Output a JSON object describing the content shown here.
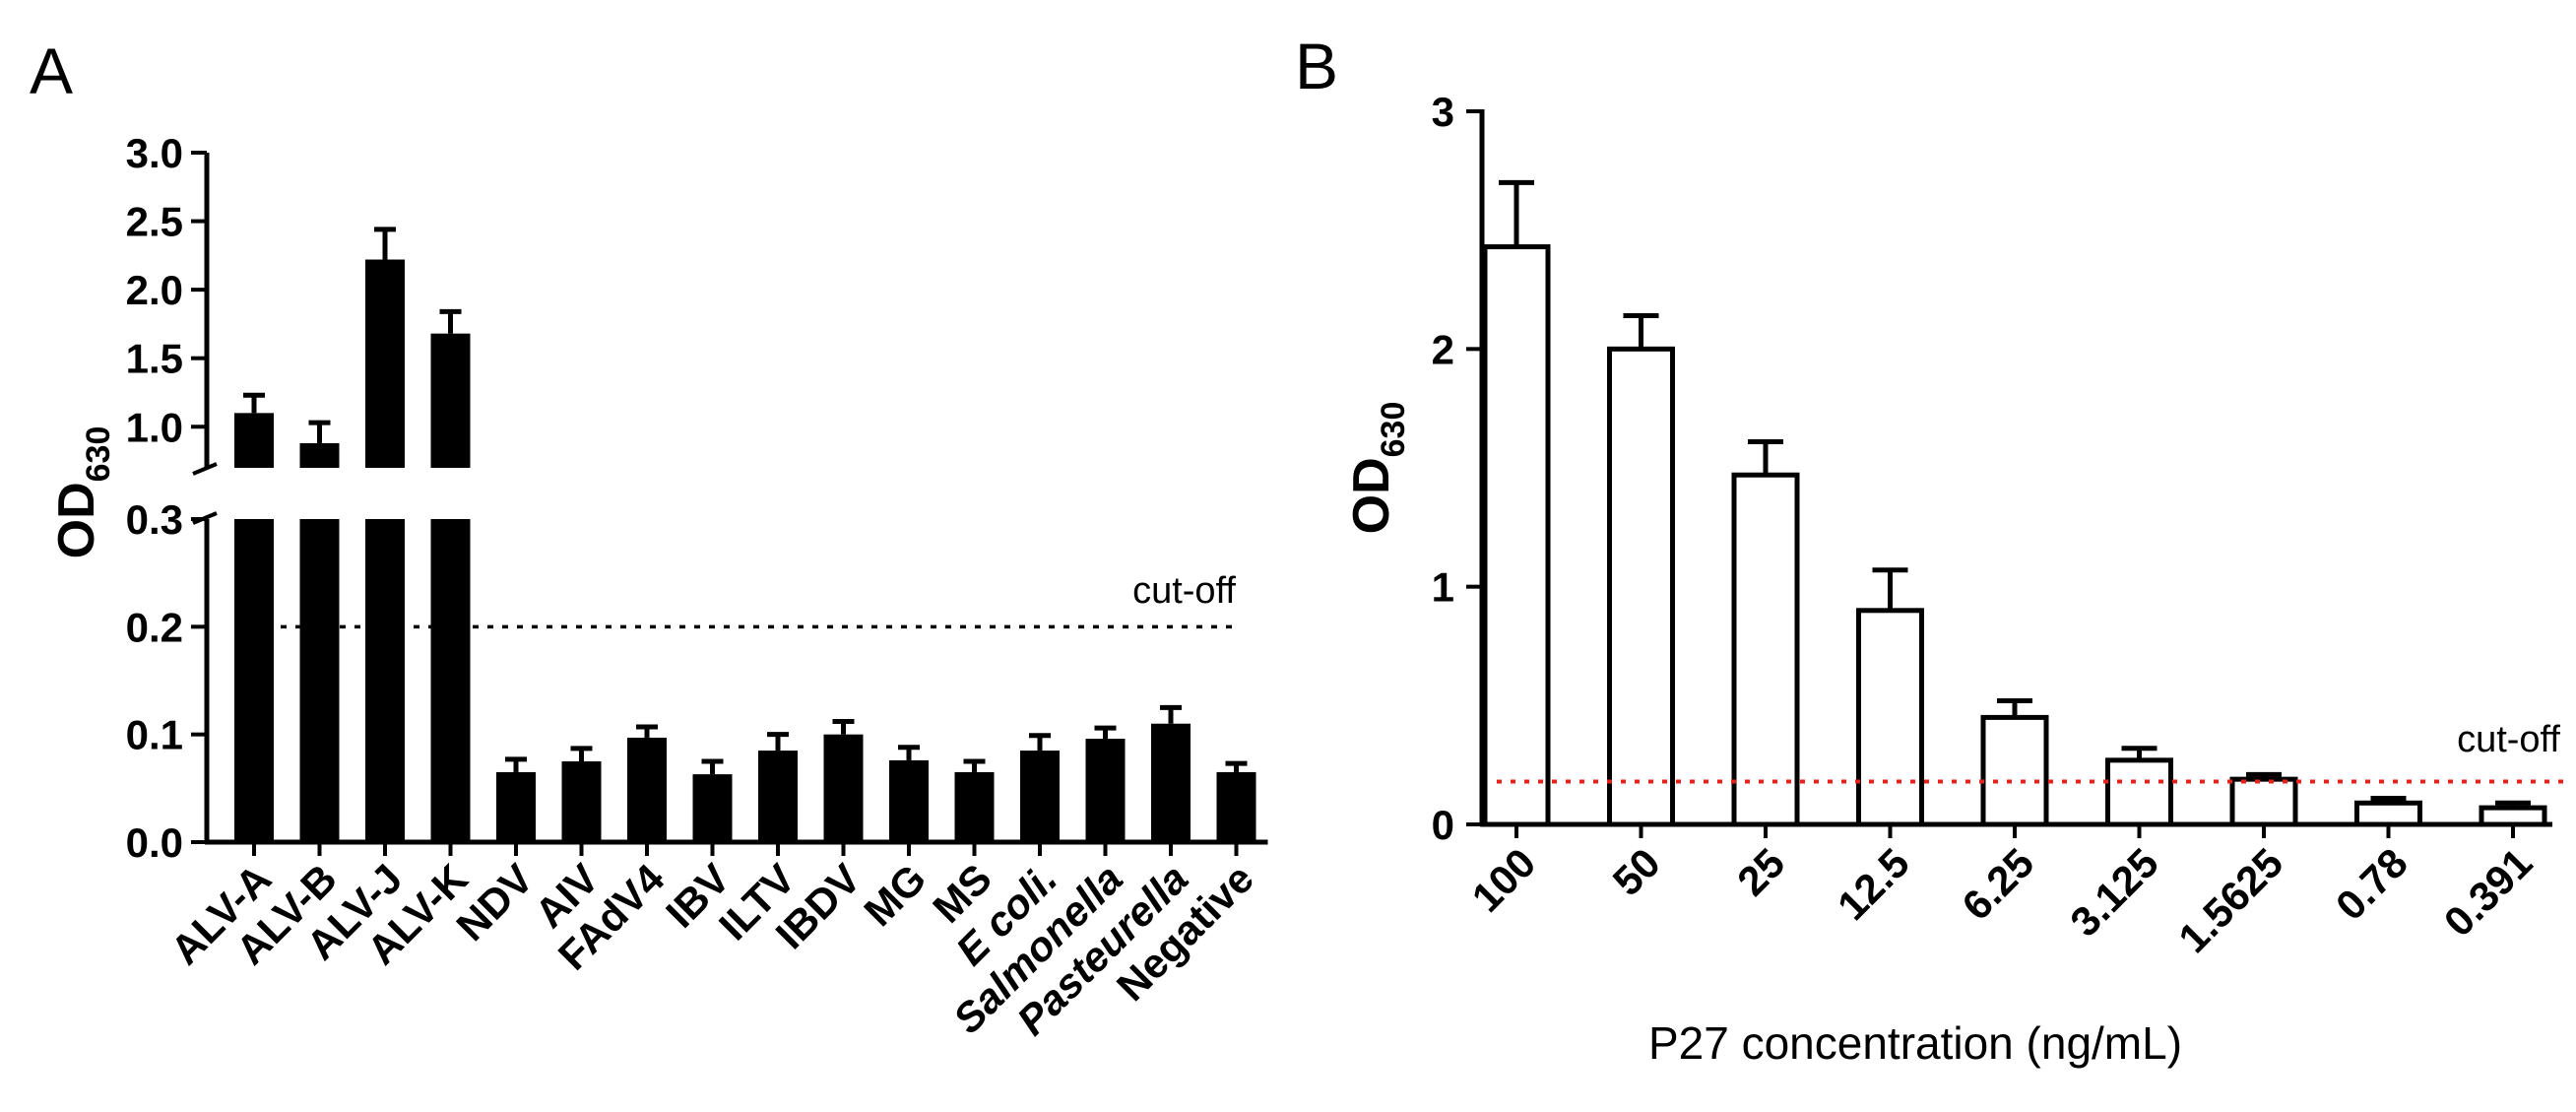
{
  "chart_data": [
    {
      "panel": "A",
      "type": "bar",
      "categories": [
        "ALV-A",
        "ALV-B",
        "ALV-J",
        "ALV-K",
        "NDV",
        "AIV",
        "FAdV4",
        "IBV",
        "ILTV",
        "IBDV",
        "MG",
        "MS",
        "E coli.",
        "Salmonella",
        "Pasteurella",
        "Negative"
      ],
      "italic_categories": [
        "E coli.",
        "Salmonella",
        "Pasteurella"
      ],
      "values": [
        1.1,
        0.88,
        2.22,
        1.68,
        0.065,
        0.075,
        0.097,
        0.063,
        0.085,
        0.1,
        0.076,
        0.065,
        0.085,
        0.096,
        0.11,
        0.065
      ],
      "errors": [
        0.13,
        0.15,
        0.22,
        0.16,
        0.012,
        0.012,
        0.01,
        0.012,
        0.015,
        0.012,
        0.012,
        0.01,
        0.014,
        0.01,
        0.015,
        0.008
      ],
      "ylabel": "OD",
      "ylabel_sub": "630",
      "xlabel": "",
      "broken_axis": true,
      "lower_ylim": [
        0,
        0.3
      ],
      "upper_ylim": [
        0.7,
        3.0
      ],
      "lower_ticks": [
        "0.0",
        "0.1",
        "0.2",
        "0.3"
      ],
      "upper_ticks": [
        "1.0",
        "1.5",
        "2.0",
        "2.5",
        "3.0"
      ],
      "cutoff": {
        "value": 0.2,
        "label": "cut-off",
        "color": "#000000"
      },
      "bar_fill": "#000000"
    },
    {
      "panel": "B",
      "type": "bar",
      "categories": [
        "100",
        "50",
        "25",
        "12.5",
        "6.25",
        "3.125",
        "1.5625",
        "0.78",
        "0.391"
      ],
      "values": [
        2.43,
        2.0,
        1.47,
        0.9,
        0.45,
        0.27,
        0.19,
        0.09,
        0.07
      ],
      "errors": [
        0.27,
        0.14,
        0.14,
        0.17,
        0.07,
        0.05,
        0.02,
        0.02,
        0.02
      ],
      "ylabel": "OD",
      "ylabel_sub": "630",
      "xlabel": "P27 concentration (ng/mL)",
      "ylim": [
        0,
        3
      ],
      "yticks": [
        "0",
        "1",
        "2",
        "3"
      ],
      "cutoff": {
        "value": 0.18,
        "label": "cut-off",
        "color": "#e8221b"
      },
      "bar_fill": "#ffffff"
    }
  ]
}
